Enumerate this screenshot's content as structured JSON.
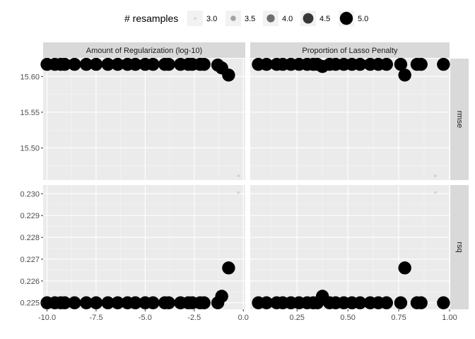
{
  "chart_data": {
    "type": "scatter",
    "legend": {
      "title": "# resamples",
      "placement": "top",
      "entries": [
        {
          "label": "3.0",
          "value": 3.0
        },
        {
          "label": "3.5",
          "value": 3.5
        },
        {
          "label": "4.0",
          "value": 4.0
        },
        {
          "label": "4.5",
          "value": 4.5
        },
        {
          "label": "5.0",
          "value": 5.0
        }
      ]
    },
    "columns": [
      {
        "label": "Amount of Regularization (log-10)",
        "xlim": [
          -10.2,
          0.1
        ],
        "ticks": [
          -10,
          -7.5,
          -5,
          -2.5,
          0
        ],
        "tick_labels": [
          "-10.0",
          "-7.5",
          "-5.0",
          "-2.5",
          "0.0"
        ]
      },
      {
        "label": "Proportion of Lasso Penalty",
        "xlim": [
          0.02,
          1.0
        ],
        "ticks": [
          0.25,
          0.5,
          0.75,
          1.0
        ],
        "tick_labels": [
          "0.25",
          "0.50",
          "0.75",
          "1.00"
        ]
      }
    ],
    "rows": [
      {
        "label": "rmse",
        "ylim": [
          15.455,
          15.625
        ],
        "ticks": [
          15.5,
          15.55,
          15.6
        ],
        "tick_labels": [
          "15.50",
          "15.55",
          "15.60"
        ]
      },
      {
        "label": "rsq",
        "ylim": [
          0.2247,
          0.2304
        ],
        "ticks": [
          0.225,
          0.226,
          0.227,
          0.228,
          0.229,
          0.23
        ],
        "tick_labels": [
          "0.225",
          "0.226",
          "0.227",
          "0.228",
          "0.229",
          "0.230"
        ]
      }
    ],
    "grid": true,
    "panels": [
      {
        "row": 0,
        "col": 0,
        "points": [
          {
            "x": -10.0,
            "y": 15.617,
            "n": 5
          },
          {
            "x": -9.6,
            "y": 15.617,
            "n": 5
          },
          {
            "x": -9.3,
            "y": 15.617,
            "n": 5
          },
          {
            "x": -9.1,
            "y": 15.617,
            "n": 5
          },
          {
            "x": -8.6,
            "y": 15.617,
            "n": 5
          },
          {
            "x": -8.0,
            "y": 15.617,
            "n": 5
          },
          {
            "x": -7.5,
            "y": 15.617,
            "n": 5
          },
          {
            "x": -6.9,
            "y": 15.617,
            "n": 5
          },
          {
            "x": -6.4,
            "y": 15.617,
            "n": 5
          },
          {
            "x": -5.9,
            "y": 15.617,
            "n": 5
          },
          {
            "x": -5.5,
            "y": 15.617,
            "n": 5
          },
          {
            "x": -5.0,
            "y": 15.617,
            "n": 5
          },
          {
            "x": -4.6,
            "y": 15.617,
            "n": 5
          },
          {
            "x": -4.0,
            "y": 15.617,
            "n": 5
          },
          {
            "x": -3.8,
            "y": 15.617,
            "n": 5
          },
          {
            "x": -3.2,
            "y": 15.617,
            "n": 5
          },
          {
            "x": -2.8,
            "y": 15.617,
            "n": 5
          },
          {
            "x": -2.6,
            "y": 15.617,
            "n": 5
          },
          {
            "x": -2.2,
            "y": 15.617,
            "n": 5
          },
          {
            "x": -2.0,
            "y": 15.617,
            "n": 5
          },
          {
            "x": -1.3,
            "y": 15.616,
            "n": 5
          },
          {
            "x": -1.1,
            "y": 15.612,
            "n": 5
          },
          {
            "x": -0.75,
            "y": 15.602,
            "n": 5
          },
          {
            "x": -0.25,
            "y": 15.461,
            "n": 3
          }
        ]
      },
      {
        "row": 0,
        "col": 1,
        "points": [
          {
            "x": 0.06,
            "y": 15.617,
            "n": 5
          },
          {
            "x": 0.1,
            "y": 15.617,
            "n": 5
          },
          {
            "x": 0.15,
            "y": 15.617,
            "n": 5
          },
          {
            "x": 0.18,
            "y": 15.617,
            "n": 5
          },
          {
            "x": 0.22,
            "y": 15.617,
            "n": 5
          },
          {
            "x": 0.26,
            "y": 15.617,
            "n": 5
          },
          {
            "x": 0.3,
            "y": 15.617,
            "n": 5
          },
          {
            "x": 0.33,
            "y": 15.617,
            "n": 5
          },
          {
            "x": 0.35,
            "y": 15.617,
            "n": 5
          },
          {
            "x": 0.375,
            "y": 15.614,
            "n": 5
          },
          {
            "x": 0.41,
            "y": 15.617,
            "n": 5
          },
          {
            "x": 0.44,
            "y": 15.617,
            "n": 5
          },
          {
            "x": 0.48,
            "y": 15.617,
            "n": 5
          },
          {
            "x": 0.52,
            "y": 15.617,
            "n": 5
          },
          {
            "x": 0.56,
            "y": 15.617,
            "n": 5
          },
          {
            "x": 0.61,
            "y": 15.617,
            "n": 5
          },
          {
            "x": 0.65,
            "y": 15.617,
            "n": 5
          },
          {
            "x": 0.69,
            "y": 15.617,
            "n": 5
          },
          {
            "x": 0.76,
            "y": 15.617,
            "n": 5
          },
          {
            "x": 0.78,
            "y": 15.602,
            "n": 5
          },
          {
            "x": 0.84,
            "y": 15.617,
            "n": 5
          },
          {
            "x": 0.86,
            "y": 15.617,
            "n": 5
          },
          {
            "x": 0.93,
            "y": 15.461,
            "n": 3
          },
          {
            "x": 0.97,
            "y": 15.617,
            "n": 5
          }
        ]
      },
      {
        "row": 1,
        "col": 0,
        "points": [
          {
            "x": -10.0,
            "y": 0.225,
            "n": 5
          },
          {
            "x": -9.6,
            "y": 0.225,
            "n": 5
          },
          {
            "x": -9.3,
            "y": 0.225,
            "n": 5
          },
          {
            "x": -9.1,
            "y": 0.225,
            "n": 5
          },
          {
            "x": -8.6,
            "y": 0.225,
            "n": 5
          },
          {
            "x": -8.0,
            "y": 0.225,
            "n": 5
          },
          {
            "x": -7.5,
            "y": 0.225,
            "n": 5
          },
          {
            "x": -6.9,
            "y": 0.225,
            "n": 5
          },
          {
            "x": -6.4,
            "y": 0.225,
            "n": 5
          },
          {
            "x": -5.9,
            "y": 0.225,
            "n": 5
          },
          {
            "x": -5.5,
            "y": 0.225,
            "n": 5
          },
          {
            "x": -5.0,
            "y": 0.225,
            "n": 5
          },
          {
            "x": -4.6,
            "y": 0.225,
            "n": 5
          },
          {
            "x": -4.0,
            "y": 0.225,
            "n": 5
          },
          {
            "x": -3.8,
            "y": 0.225,
            "n": 5
          },
          {
            "x": -3.2,
            "y": 0.225,
            "n": 5
          },
          {
            "x": -2.8,
            "y": 0.225,
            "n": 5
          },
          {
            "x": -2.6,
            "y": 0.225,
            "n": 5
          },
          {
            "x": -2.2,
            "y": 0.225,
            "n": 5
          },
          {
            "x": -2.0,
            "y": 0.225,
            "n": 5
          },
          {
            "x": -1.3,
            "y": 0.225,
            "n": 5
          },
          {
            "x": -1.1,
            "y": 0.2253,
            "n": 5
          },
          {
            "x": -0.75,
            "y": 0.2266,
            "n": 5
          },
          {
            "x": -0.25,
            "y": 0.23005,
            "n": 3
          }
        ]
      },
      {
        "row": 1,
        "col": 1,
        "points": [
          {
            "x": 0.06,
            "y": 0.225,
            "n": 5
          },
          {
            "x": 0.1,
            "y": 0.225,
            "n": 5
          },
          {
            "x": 0.15,
            "y": 0.225,
            "n": 5
          },
          {
            "x": 0.18,
            "y": 0.225,
            "n": 5
          },
          {
            "x": 0.22,
            "y": 0.225,
            "n": 5
          },
          {
            "x": 0.26,
            "y": 0.225,
            "n": 5
          },
          {
            "x": 0.3,
            "y": 0.225,
            "n": 5
          },
          {
            "x": 0.33,
            "y": 0.225,
            "n": 5
          },
          {
            "x": 0.35,
            "y": 0.225,
            "n": 5
          },
          {
            "x": 0.375,
            "y": 0.2253,
            "n": 5
          },
          {
            "x": 0.41,
            "y": 0.225,
            "n": 5
          },
          {
            "x": 0.44,
            "y": 0.225,
            "n": 5
          },
          {
            "x": 0.48,
            "y": 0.225,
            "n": 5
          },
          {
            "x": 0.52,
            "y": 0.225,
            "n": 5
          },
          {
            "x": 0.56,
            "y": 0.225,
            "n": 5
          },
          {
            "x": 0.61,
            "y": 0.225,
            "n": 5
          },
          {
            "x": 0.65,
            "y": 0.225,
            "n": 5
          },
          {
            "x": 0.69,
            "y": 0.225,
            "n": 5
          },
          {
            "x": 0.76,
            "y": 0.225,
            "n": 5
          },
          {
            "x": 0.78,
            "y": 0.2266,
            "n": 5
          },
          {
            "x": 0.84,
            "y": 0.225,
            "n": 5
          },
          {
            "x": 0.86,
            "y": 0.225,
            "n": 5
          },
          {
            "x": 0.93,
            "y": 0.23005,
            "n": 3
          },
          {
            "x": 0.97,
            "y": 0.225,
            "n": 5
          }
        ]
      }
    ]
  }
}
